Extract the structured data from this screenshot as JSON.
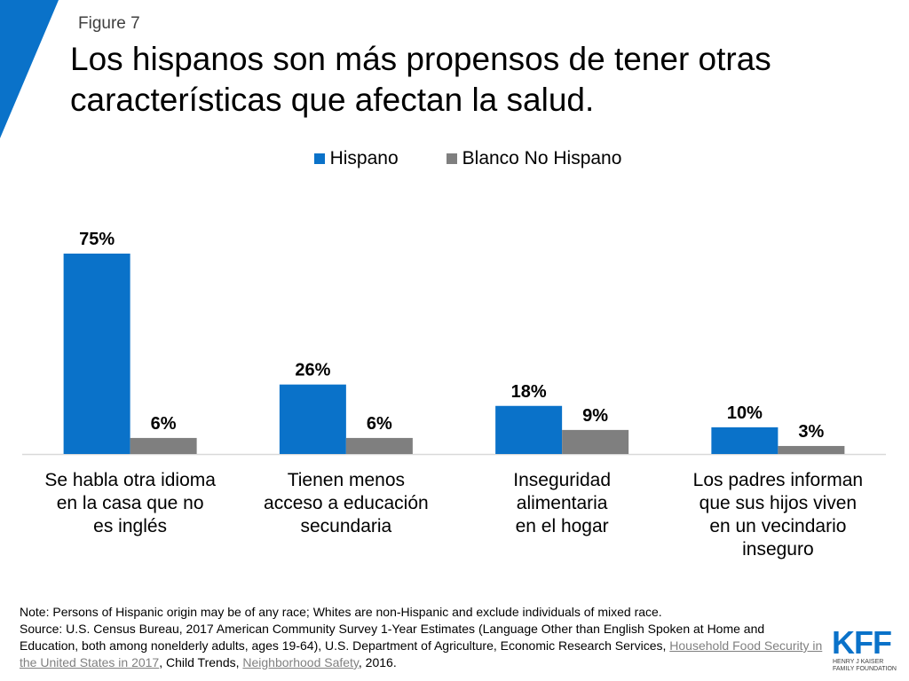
{
  "header": {
    "figure_label": "Figure 7",
    "title_line1": "Los hispanos son más propensos de tener otras",
    "title_line2": "características que afectan la salud."
  },
  "colors": {
    "hispano": "#0a72c9",
    "blanco": "#7f7f7f",
    "accent_triangle": "#0a72c9",
    "axis": "#d9d9d9"
  },
  "chart_data": {
    "type": "bar",
    "title": "Los hispanos son más propensos de tener otras características que afectan la salud.",
    "categories": [
      [
        "Se habla otra idioma",
        "en la casa que no",
        "es inglés"
      ],
      [
        "Tienen menos",
        "acceso a educación",
        "secundaria"
      ],
      [
        "Inseguridad",
        "alimentaria",
        "en el hogar"
      ],
      [
        "Los padres informan",
        "que sus hijos viven",
        "en un vecindario",
        "inseguro"
      ]
    ],
    "series": [
      {
        "name": "Hispano",
        "values": [
          75,
          26,
          18,
          10
        ],
        "labels": [
          "75%",
          "26%",
          "18%",
          "10%"
        ]
      },
      {
        "name": "Blanco No Hispano",
        "values": [
          6,
          6,
          9,
          3
        ],
        "labels": [
          "6%",
          "6%",
          "9%",
          "3%"
        ]
      }
    ],
    "ylim": [
      0,
      80
    ],
    "xlabel": "",
    "ylabel": "",
    "grid": false,
    "legend_position": "top-center"
  },
  "notes": {
    "line1": "Note: Persons of Hispanic origin may be of any race; Whites are non-Hispanic and exclude individuals of mixed race.",
    "source_prefix": "Source: U.S. Census Bureau, 2017 American Community Survey 1-Year Estimates (Language Other than English Spoken at Home and Education, both among nonelderly adults, ages 19-64), U.S. Department of Agriculture, Economic Research Services, ",
    "link1": "Household Food Security in the United States in 2017",
    "source_mid": ", Child Trends, ",
    "link2": "Neighborhood Safety",
    "source_suffix": ", 2016."
  },
  "logo": {
    "kff": "KFF",
    "line1": "HENRY J KAISER",
    "line2": "FAMILY FOUNDATION"
  }
}
